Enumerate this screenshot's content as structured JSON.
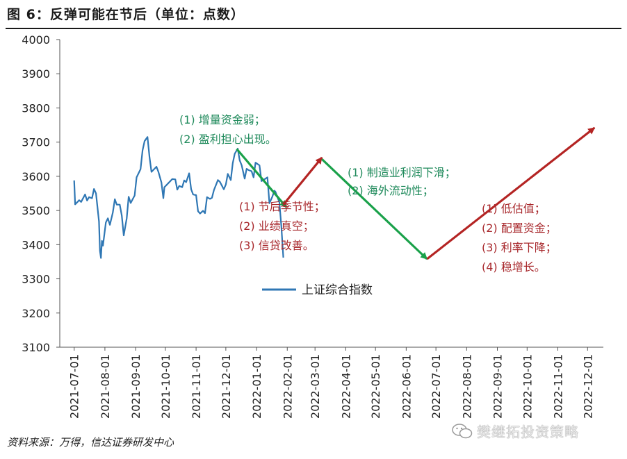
{
  "title": "图 6：反弹可能在节后（单位：点数）",
  "source": "资料来源：万得，信达证券研发中心",
  "watermark": "樊继拓投资策略",
  "colors": {
    "series": "#2f77b4",
    "green": "#1aa14a",
    "red": "#b42423",
    "green_text": "#1f8a5b",
    "red_text": "#a8282c"
  },
  "chart_data": {
    "type": "line",
    "ylim": [
      3100,
      4000
    ],
    "yticks": [
      3100,
      3200,
      3300,
      3400,
      3500,
      3600,
      3700,
      3800,
      3900,
      4000
    ],
    "xticks": [
      "2021-07-01",
      "2021-08-01",
      "2021-09-01",
      "2021-10-01",
      "2021-11-01",
      "2021-12-01",
      "2022-01-01",
      "2022-02-01",
      "2022-03-01",
      "2022-04-01",
      "2022-05-01",
      "2022-06-01",
      "2022-07-01",
      "2022-08-01",
      "2022-09-01",
      "2022-10-01",
      "2022-11-01",
      "2022-12-01"
    ],
    "grid": false,
    "legend": {
      "position": "center",
      "entries": [
        "上证综合指数"
      ]
    },
    "series": [
      {
        "name": "上证综合指数",
        "points": [
          [
            "2021-07-01",
            3588
          ],
          [
            "2021-07-02",
            3518
          ],
          [
            "2021-07-06",
            3530
          ],
          [
            "2021-07-08",
            3525
          ],
          [
            "2021-07-12",
            3547
          ],
          [
            "2021-07-14",
            3529
          ],
          [
            "2021-07-16",
            3539
          ],
          [
            "2021-07-19",
            3536
          ],
          [
            "2021-07-21",
            3563
          ],
          [
            "2021-07-23",
            3550
          ],
          [
            "2021-07-26",
            3468
          ],
          [
            "2021-07-27",
            3382
          ],
          [
            "2021-07-28",
            3361
          ],
          [
            "2021-07-29",
            3411
          ],
          [
            "2021-07-30",
            3397
          ],
          [
            "2021-08-02",
            3465
          ],
          [
            "2021-08-04",
            3477
          ],
          [
            "2021-08-06",
            3458
          ],
          [
            "2021-08-09",
            3494
          ],
          [
            "2021-08-11",
            3533
          ],
          [
            "2021-08-13",
            3517
          ],
          [
            "2021-08-16",
            3517
          ],
          [
            "2021-08-18",
            3485
          ],
          [
            "2021-08-20",
            3427
          ],
          [
            "2021-08-23",
            3477
          ],
          [
            "2021-08-25",
            3540
          ],
          [
            "2021-08-27",
            3522
          ],
          [
            "2021-08-31",
            3544
          ],
          [
            "2021-09-02",
            3597
          ],
          [
            "2021-09-06",
            3621
          ],
          [
            "2021-09-08",
            3676
          ],
          [
            "2021-09-10",
            3703
          ],
          [
            "2021-09-13",
            3715
          ],
          [
            "2021-09-15",
            3656
          ],
          [
            "2021-09-17",
            3613
          ],
          [
            "2021-09-22",
            3628
          ],
          [
            "2021-09-24",
            3613
          ],
          [
            "2021-09-27",
            3582
          ],
          [
            "2021-09-29",
            3536
          ],
          [
            "2021-09-30",
            3568
          ],
          [
            "2021-10-08",
            3592
          ],
          [
            "2021-10-11",
            3591
          ],
          [
            "2021-10-13",
            3561
          ],
          [
            "2021-10-15",
            3572
          ],
          [
            "2021-10-18",
            3568
          ],
          [
            "2021-10-20",
            3588
          ],
          [
            "2021-10-22",
            3583
          ],
          [
            "2021-10-25",
            3609
          ],
          [
            "2021-10-27",
            3562
          ],
          [
            "2021-10-29",
            3547
          ],
          [
            "2021-11-01",
            3545
          ],
          [
            "2021-11-03",
            3498
          ],
          [
            "2021-11-05",
            3491
          ],
          [
            "2021-11-08",
            3499
          ],
          [
            "2021-11-10",
            3492
          ],
          [
            "2021-11-12",
            3539
          ],
          [
            "2021-11-15",
            3534
          ],
          [
            "2021-11-17",
            3537
          ],
          [
            "2021-11-19",
            3560
          ],
          [
            "2021-11-23",
            3589
          ],
          [
            "2021-11-25",
            3584
          ],
          [
            "2021-11-29",
            3562
          ],
          [
            "2021-12-01",
            3576
          ],
          [
            "2021-12-03",
            3607
          ],
          [
            "2021-12-06",
            3589
          ],
          [
            "2021-12-08",
            3638
          ],
          [
            "2021-12-10",
            3666
          ],
          [
            "2021-12-13",
            3681
          ],
          [
            "2021-12-15",
            3647
          ],
          [
            "2021-12-17",
            3632
          ],
          [
            "2021-12-20",
            3593
          ],
          [
            "2021-12-22",
            3622
          ],
          [
            "2021-12-24",
            3618
          ],
          [
            "2021-12-27",
            3615
          ],
          [
            "2021-12-29",
            3597
          ],
          [
            "2021-12-31",
            3640
          ],
          [
            "2022-01-04",
            3632
          ],
          [
            "2022-01-06",
            3586
          ],
          [
            "2022-01-10",
            3593
          ],
          [
            "2022-01-12",
            3597
          ],
          [
            "2022-01-14",
            3521
          ],
          [
            "2022-01-17",
            3541
          ],
          [
            "2022-01-19",
            3558
          ],
          [
            "2022-01-20",
            3555
          ],
          [
            "2022-01-24",
            3524
          ],
          [
            "2022-01-26",
            3455
          ],
          [
            "2022-01-28",
            3362
          ]
        ]
      }
    ],
    "arrows": [
      {
        "color": "green",
        "from": [
          "2021-12-12",
          3680
        ],
        "to": [
          "2022-01-31",
          3510
        ]
      },
      {
        "color": "red",
        "from": [
          "2022-01-28",
          3517
        ],
        "to": [
          "2022-03-08",
          3655
        ]
      },
      {
        "color": "green",
        "from": [
          "2022-03-08",
          3650
        ],
        "to": [
          "2022-06-22",
          3358
        ]
      },
      {
        "color": "red",
        "from": [
          "2022-06-22",
          3358
        ],
        "to": [
          "2022-12-08",
          3742
        ]
      }
    ]
  },
  "annotations": {
    "a1": [
      "(1) 增量资金弱；",
      "(2) 盈利担心出现。"
    ],
    "a2": [
      "(1) 节后季节性；",
      "(2) 业绩真空；",
      "(3) 信贷改善。"
    ],
    "a3": [
      "(1) 制造业利润下滑；",
      "(2) 海外流动性；"
    ],
    "a4": [
      "(1)  低估值；",
      "(2)  配置资金；",
      "(3)  利率下降；",
      "(4)  稳增长。"
    ]
  }
}
